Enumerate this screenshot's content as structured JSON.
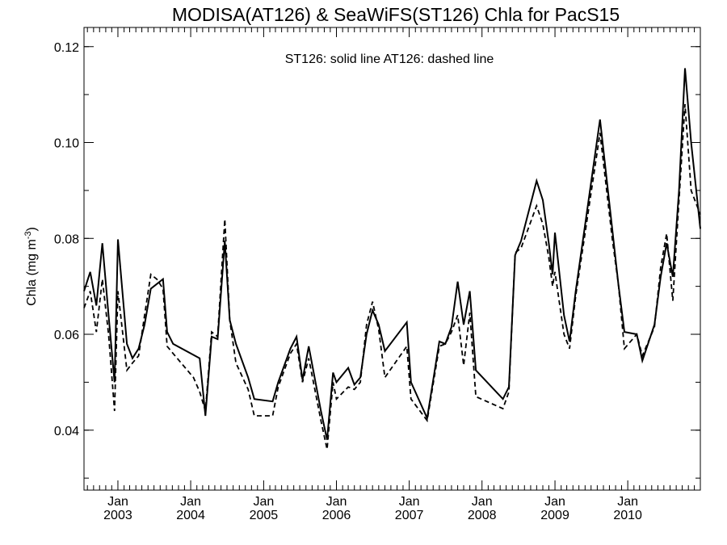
{
  "chart_data": {
    "type": "line",
    "title": "MODISA(AT126) & SeaWiFS(ST126)  Chla for PacS15",
    "annotation": "ST126: solid line   AT126: dashed line",
    "ylabel": "Chla (mg m",
    "ylabel_sup": "-3",
    "ylabel_close": ")",
    "xlabel": "",
    "ylim": [
      0.0275,
      0.124
    ],
    "xlim": [
      "2002-07-15",
      "2010-12-31"
    ],
    "yticks": [
      0.04,
      0.06,
      0.08,
      0.1,
      0.12
    ],
    "ytick_labels": [
      "0.04",
      "0.06",
      "0.08",
      "0.10",
      "0.12"
    ],
    "xticks": [
      {
        "month": "Jan",
        "year": "2003",
        "date": "2003-01-01"
      },
      {
        "month": "Jan",
        "year": "2004",
        "date": "2004-01-01"
      },
      {
        "month": "Jan",
        "year": "2005",
        "date": "2005-01-01"
      },
      {
        "month": "Jan",
        "year": "2006",
        "date": "2006-01-01"
      },
      {
        "month": "Jan",
        "year": "2007",
        "date": "2007-01-01"
      },
      {
        "month": "Jan",
        "year": "2008",
        "date": "2008-01-01"
      },
      {
        "month": "Jan",
        "year": "2009",
        "date": "2009-01-01"
      },
      {
        "month": "Jan",
        "year": "2010",
        "date": "2010-01-01"
      }
    ],
    "grid": false,
    "series": [
      {
        "name": "ST126",
        "style": "solid",
        "color": "#000000",
        "points": [
          [
            "2002-07-15",
            0.069
          ],
          [
            "2002-08-15",
            0.073
          ],
          [
            "2002-09-15",
            0.066
          ],
          [
            "2002-10-15",
            0.079
          ],
          [
            "2002-11-15",
            0.064
          ],
          [
            "2002-12-15",
            0.05
          ],
          [
            "2003-01-01",
            0.0798
          ],
          [
            "2003-02-15",
            0.058
          ],
          [
            "2003-03-15",
            0.055
          ],
          [
            "2003-04-15",
            0.057
          ],
          [
            "2003-05-15",
            0.062
          ],
          [
            "2003-06-15",
            0.0695
          ],
          [
            "2003-08-15",
            0.0715
          ],
          [
            "2003-09-05",
            0.0605
          ],
          [
            "2003-10-05",
            0.058
          ],
          [
            "2004-02-15",
            0.055
          ],
          [
            "2004-03-15",
            0.043
          ],
          [
            "2004-04-15",
            0.0595
          ],
          [
            "2004-05-15",
            0.059
          ],
          [
            "2004-06-20",
            0.0795
          ],
          [
            "2004-07-15",
            0.063
          ],
          [
            "2004-08-15",
            0.058
          ],
          [
            "2004-10-15",
            0.051
          ],
          [
            "2004-11-15",
            0.0465
          ],
          [
            "2005-02-15",
            0.046
          ],
          [
            "2005-03-15",
            0.05
          ],
          [
            "2005-05-15",
            0.057
          ],
          [
            "2005-06-15",
            0.0595
          ],
          [
            "2005-07-15",
            0.0505
          ],
          [
            "2005-08-15",
            0.0575
          ],
          [
            "2005-10-15",
            0.044
          ],
          [
            "2005-11-15",
            0.038
          ],
          [
            "2005-12-15",
            0.052
          ],
          [
            "2006-01-01",
            0.05
          ],
          [
            "2006-03-01",
            0.053
          ],
          [
            "2006-04-01",
            0.0495
          ],
          [
            "2006-05-01",
            0.051
          ],
          [
            "2006-06-01",
            0.06
          ],
          [
            "2006-07-01",
            0.065
          ],
          [
            "2006-08-01",
            0.062
          ],
          [
            "2006-09-01",
            0.0565
          ],
          [
            "2006-12-20",
            0.0625
          ],
          [
            "2007-01-10",
            0.05
          ],
          [
            "2007-04-01",
            0.0425
          ],
          [
            "2007-06-01",
            0.0585
          ],
          [
            "2007-07-01",
            0.058
          ],
          [
            "2007-08-01",
            0.0615
          ],
          [
            "2007-09-01",
            0.071
          ],
          [
            "2007-10-01",
            0.062
          ],
          [
            "2007-11-01",
            0.069
          ],
          [
            "2007-12-01",
            0.0525
          ],
          [
            "2008-04-15",
            0.0465
          ],
          [
            "2008-05-15",
            0.049
          ],
          [
            "2008-06-15",
            0.0765
          ],
          [
            "2008-07-15",
            0.0795
          ],
          [
            "2008-10-01",
            0.092
          ],
          [
            "2008-11-01",
            0.088
          ],
          [
            "2008-12-01",
            0.079
          ],
          [
            "2008-12-20",
            0.0725
          ],
          [
            "2009-01-01",
            0.0812
          ],
          [
            "2009-02-15",
            0.064
          ],
          [
            "2009-03-15",
            0.0585
          ],
          [
            "2009-04-15",
            0.069
          ],
          [
            "2009-08-15",
            0.1048
          ],
          [
            "2009-10-15",
            0.082
          ],
          [
            "2009-11-15",
            0.0705
          ],
          [
            "2009-12-15",
            0.0605
          ],
          [
            "2010-02-15",
            0.06
          ],
          [
            "2010-03-15",
            0.0545
          ],
          [
            "2010-05-15",
            0.062
          ],
          [
            "2010-06-15",
            0.072
          ],
          [
            "2010-07-15",
            0.079
          ],
          [
            "2010-08-15",
            0.072
          ],
          [
            "2010-09-15",
            0.09
          ],
          [
            "2010-10-15",
            0.1155
          ],
          [
            "2010-11-15",
            0.1
          ],
          [
            "2010-12-31",
            0.082
          ]
        ]
      },
      {
        "name": "AT126",
        "style": "dashed",
        "color": "#000000",
        "points": [
          [
            "2002-07-15",
            0.0655
          ],
          [
            "2002-08-15",
            0.069
          ],
          [
            "2002-09-15",
            0.0605
          ],
          [
            "2002-10-15",
            0.0715
          ],
          [
            "2002-11-15",
            0.06
          ],
          [
            "2002-12-15",
            0.044
          ],
          [
            "2003-01-01",
            0.069
          ],
          [
            "2003-02-15",
            0.0525
          ],
          [
            "2003-03-15",
            0.054
          ],
          [
            "2003-04-15",
            0.0555
          ],
          [
            "2003-05-15",
            0.064
          ],
          [
            "2003-06-15",
            0.0725
          ],
          [
            "2003-07-15",
            0.0715
          ],
          [
            "2003-08-15",
            0.0695
          ],
          [
            "2003-09-05",
            0.0575
          ],
          [
            "2003-10-05",
            0.056
          ],
          [
            "2004-01-15",
            0.051
          ],
          [
            "2004-02-15",
            0.048
          ],
          [
            "2004-03-15",
            0.044
          ],
          [
            "2004-04-15",
            0.0605
          ],
          [
            "2004-05-15",
            0.0595
          ],
          [
            "2004-06-20",
            0.084
          ],
          [
            "2004-07-15",
            0.063
          ],
          [
            "2004-08-15",
            0.054
          ],
          [
            "2004-10-15",
            0.0485
          ],
          [
            "2004-11-15",
            0.043
          ],
          [
            "2005-02-15",
            0.043
          ],
          [
            "2005-03-15",
            0.049
          ],
          [
            "2005-05-15",
            0.056
          ],
          [
            "2005-06-15",
            0.058
          ],
          [
            "2005-07-15",
            0.05
          ],
          [
            "2005-08-15",
            0.055
          ],
          [
            "2005-10-15",
            0.042
          ],
          [
            "2005-11-15",
            0.036
          ],
          [
            "2005-12-15",
            0.05
          ],
          [
            "2006-01-01",
            0.0465
          ],
          [
            "2006-03-01",
            0.049
          ],
          [
            "2006-04-01",
            0.0485
          ],
          [
            "2006-05-01",
            0.05
          ],
          [
            "2006-06-01",
            0.062
          ],
          [
            "2006-07-01",
            0.0668
          ],
          [
            "2006-08-01",
            0.061
          ],
          [
            "2006-09-01",
            0.051
          ],
          [
            "2006-12-20",
            0.0575
          ],
          [
            "2007-01-10",
            0.0465
          ],
          [
            "2007-04-01",
            0.042
          ],
          [
            "2007-06-01",
            0.0575
          ],
          [
            "2007-07-01",
            0.058
          ],
          [
            "2007-08-01",
            0.0605
          ],
          [
            "2007-09-01",
            0.064
          ],
          [
            "2007-10-01",
            0.0535
          ],
          [
            "2007-11-01",
            0.0645
          ],
          [
            "2007-12-01",
            0.047
          ],
          [
            "2008-04-15",
            0.0445
          ],
          [
            "2008-05-15",
            0.048
          ],
          [
            "2008-06-15",
            0.077
          ],
          [
            "2008-07-15",
            0.078
          ],
          [
            "2008-10-01",
            0.0868
          ],
          [
            "2008-11-01",
            0.083
          ],
          [
            "2008-12-01",
            0.076
          ],
          [
            "2008-12-20",
            0.07
          ],
          [
            "2009-01-01",
            0.073
          ],
          [
            "2009-02-15",
            0.06
          ],
          [
            "2009-03-15",
            0.057
          ],
          [
            "2009-04-15",
            0.068
          ],
          [
            "2009-08-15",
            0.102
          ],
          [
            "2009-10-15",
            0.08
          ],
          [
            "2009-11-15",
            0.0705
          ],
          [
            "2009-12-15",
            0.057
          ],
          [
            "2010-02-15",
            0.06
          ],
          [
            "2010-03-15",
            0.0555
          ],
          [
            "2010-05-15",
            0.0615
          ],
          [
            "2010-06-15",
            0.074
          ],
          [
            "2010-07-15",
            0.081
          ],
          [
            "2010-08-15",
            0.067
          ],
          [
            "2010-09-15",
            0.088
          ],
          [
            "2010-10-15",
            0.108
          ],
          [
            "2010-11-15",
            0.09
          ],
          [
            "2010-12-31",
            0.085
          ]
        ]
      }
    ]
  }
}
